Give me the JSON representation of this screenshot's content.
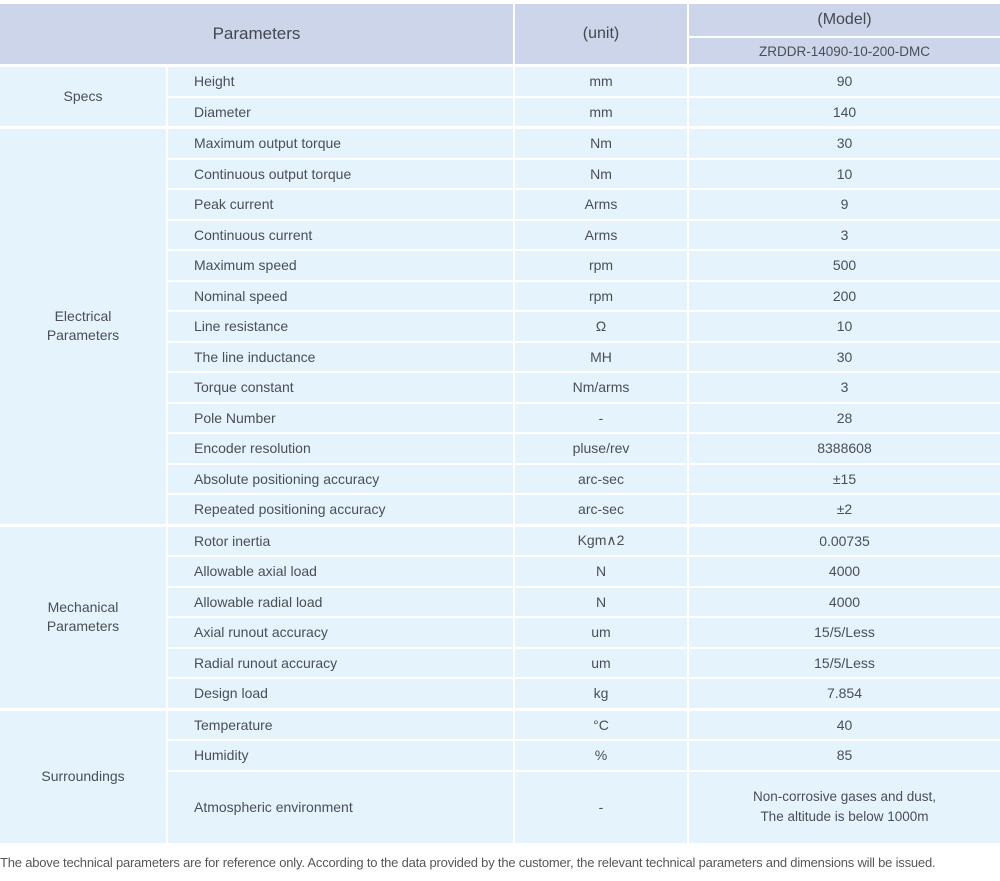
{
  "colors": {
    "header_bg": "#ccd5ea",
    "cell_bg": "#e5f3fc",
    "text": "#4a4f55",
    "divider": "#ffffff"
  },
  "header": {
    "parameters_label": "Parameters",
    "unit_label": "(unit)",
    "model_label": "(Model)",
    "model_number": "ZRDDR-14090-10-200-DMC"
  },
  "sections": [
    {
      "category": "Specs",
      "rows": [
        {
          "name": "Height",
          "unit": "mm",
          "value": "90"
        },
        {
          "name": "Diameter",
          "unit": "mm",
          "value": "140"
        }
      ]
    },
    {
      "category": "Electrical\nParameters",
      "rows": [
        {
          "name": "Maximum output torque",
          "unit": "Nm",
          "value": "30"
        },
        {
          "name": "Continuous output torque",
          "unit": "Nm",
          "value": "10"
        },
        {
          "name": "Peak current",
          "unit": "Arms",
          "value": "9"
        },
        {
          "name": "Continuous current",
          "unit": "Arms",
          "value": "3"
        },
        {
          "name": "Maximum speed",
          "unit": "rpm",
          "value": "500"
        },
        {
          "name": "Nominal speed",
          "unit": "rpm",
          "value": "200"
        },
        {
          "name": "Line resistance",
          "unit": "Ω",
          "value": "10"
        },
        {
          "name": "The line inductance",
          "unit": "MH",
          "value": "30"
        },
        {
          "name": "Torque constant",
          "unit": "Nm/arms",
          "value": "3"
        },
        {
          "name": "Pole Number",
          "unit": "-",
          "value": "28"
        },
        {
          "name": "Encoder resolution",
          "unit": "pluse/rev",
          "value": "8388608"
        },
        {
          "name": "Absolute positioning accuracy",
          "unit": "arc-sec",
          "value": "±15"
        },
        {
          "name": "Repeated positioning accuracy",
          "unit": "arc-sec",
          "value": "±2"
        }
      ]
    },
    {
      "category": "Mechanical\nParameters",
      "rows": [
        {
          "name": "Rotor inertia",
          "unit": "Kgm∧2",
          "value": "0.00735"
        },
        {
          "name": "Allowable axial load",
          "unit": "N",
          "value": "4000"
        },
        {
          "name": "Allowable radial load",
          "unit": "N",
          "value": "4000"
        },
        {
          "name": "Axial runout accuracy",
          "unit": "um",
          "value": "15/5/Less"
        },
        {
          "name": "Radial runout accuracy",
          "unit": "um",
          "value": "15/5/Less"
        },
        {
          "name": "Design load",
          "unit": "kg",
          "value": "7.854"
        }
      ]
    },
    {
      "category": "Surroundings",
      "rows": [
        {
          "name": "Temperature",
          "unit": "°C",
          "value": "40"
        },
        {
          "name": "Humidity",
          "unit": "%",
          "value": "85"
        },
        {
          "name": "Atmospheric environment",
          "unit": "-",
          "value": "Non-corrosive gases and dust,\nThe altitude is below 1000m"
        }
      ]
    }
  ],
  "footer": {
    "note": "The above technical parameters are for reference only. According to the data provided by the customer, the relevant technical parameters and dimensions will be issued."
  }
}
